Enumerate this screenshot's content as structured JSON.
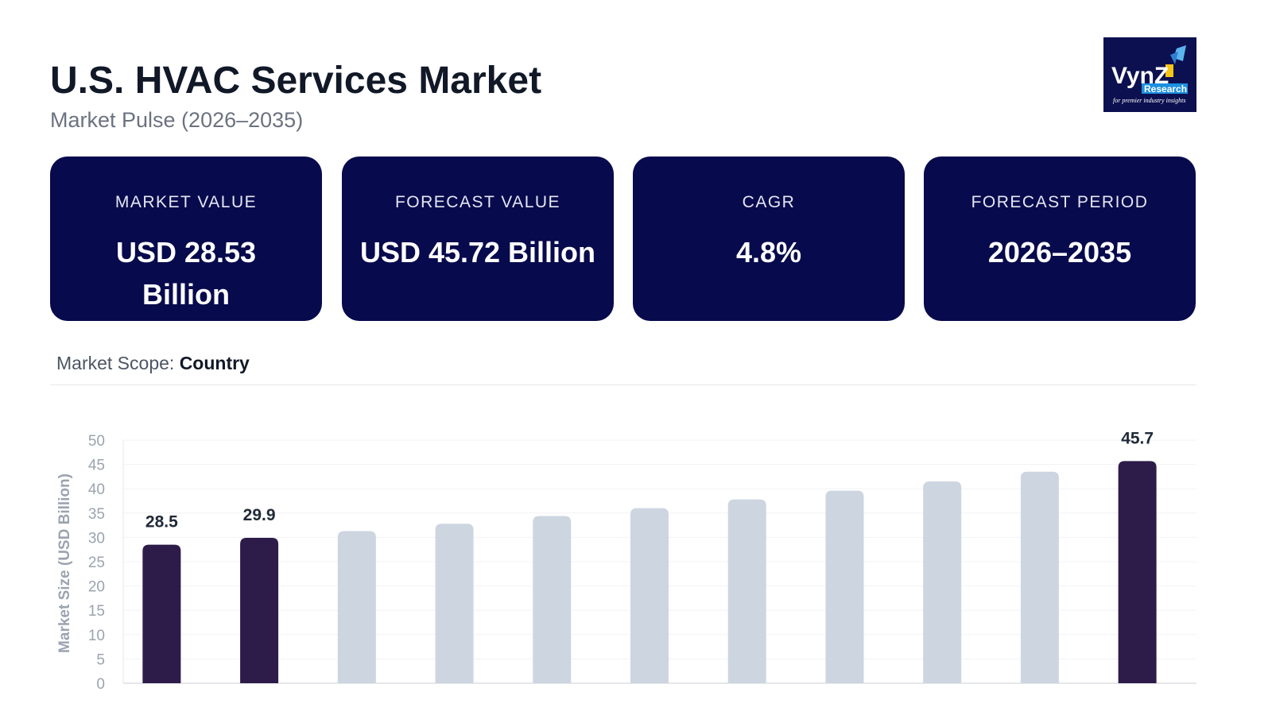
{
  "header": {
    "title": "U.S. HVAC Services Market",
    "subtitle": "Market Pulse (2026–2035)"
  },
  "logo": {
    "text": "VynZ",
    "badge": "Research",
    "tagline": "for premier industry insights",
    "colors": {
      "bg": "#0c1050",
      "badge": "#1d8fe0"
    }
  },
  "cards": [
    {
      "label": "MARKET VALUE",
      "value": "USD 28.53 Billion"
    },
    {
      "label": "FORECAST VALUE",
      "value": "USD 45.72 Billion"
    },
    {
      "label": "CAGR",
      "value": "4.8%"
    },
    {
      "label": "FORECAST PERIOD",
      "value": "2026–2035"
    }
  ],
  "scope": {
    "label": "Market Scope:",
    "value": "Country"
  },
  "colors": {
    "card": "#070a4c",
    "bar_highlight": "#2d1b4a",
    "bar_default": "#cdd5e1"
  },
  "chart_data": {
    "type": "bar",
    "title": "",
    "xlabel": "",
    "ylabel": "Market Size (USD Billion)",
    "ylim": [
      0,
      50
    ],
    "yticks": [
      0,
      5,
      10,
      15,
      20,
      25,
      30,
      35,
      40,
      45,
      50
    ],
    "grid": true,
    "values": [
      28.5,
      29.9,
      31.3,
      32.8,
      34.4,
      36.0,
      37.8,
      39.6,
      41.5,
      43.5,
      45.7
    ],
    "highlighted": [
      0,
      1,
      10
    ],
    "data_labels": [
      "28.5",
      "29.9",
      "",
      "",
      "",
      "",
      "",
      "",
      "",
      "",
      "45.7"
    ]
  }
}
